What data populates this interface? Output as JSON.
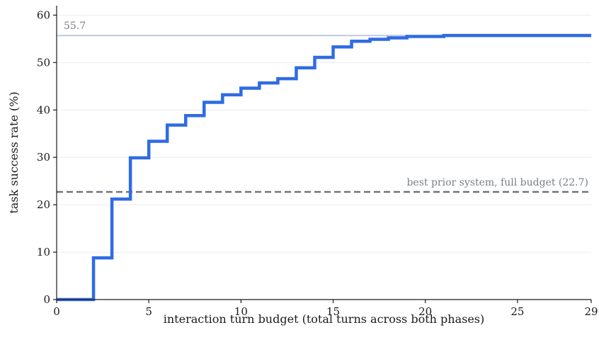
{
  "chart_data": {
    "type": "line",
    "step": "post",
    "title": "",
    "xlabel": "interaction turn budget (total turns across both phases)",
    "ylabel": "task success rate (%)",
    "xlim": [
      0,
      29
    ],
    "ylim": [
      0,
      62
    ],
    "xticks": [
      0,
      5,
      10,
      15,
      20,
      25,
      29
    ],
    "yticks": [
      0,
      10,
      20,
      30,
      40,
      50,
      60
    ],
    "grid": "horizontal",
    "series": [
      {
        "color": "#2f6be4",
        "x": [
          0,
          1,
          2,
          3,
          4,
          5,
          6,
          7,
          8,
          9,
          10,
          11,
          12,
          13,
          14,
          15,
          16,
          17,
          18,
          19,
          20,
          21,
          22,
          23,
          24,
          25,
          26,
          27,
          28,
          29
        ],
        "y": [
          0,
          0,
          8.8,
          21.2,
          29.9,
          33.4,
          36.8,
          38.8,
          41.6,
          43.2,
          44.6,
          45.7,
          46.6,
          48.9,
          51.1,
          53.3,
          54.5,
          54.9,
          55.2,
          55.5,
          55.5,
          55.7,
          55.7,
          55.7,
          55.7,
          55.7,
          55.7,
          55.7,
          55.7,
          55.7
        ]
      }
    ],
    "reference_lines": [
      {
        "y": 55.7,
        "label": "55.7",
        "style": "solid",
        "color": "#b8c9df"
      },
      {
        "y": 22.7,
        "label": "best prior system, full budget (22.7)",
        "style": "dashed",
        "color": "#6e747c"
      }
    ]
  }
}
